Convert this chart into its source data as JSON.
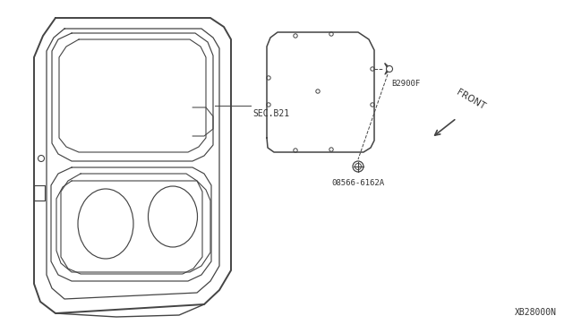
{
  "bg_color": "#ffffff",
  "line_color": "#444444",
  "text_color": "#333333",
  "label_sec_b21": "SEC.B21",
  "label_b2900f": "B2900F",
  "label_08566": "08566-6162A",
  "label_xb28000n": "XB28000N",
  "label_front": "FRONT",
  "figsize": [
    6.4,
    3.72
  ],
  "dpi": 100
}
